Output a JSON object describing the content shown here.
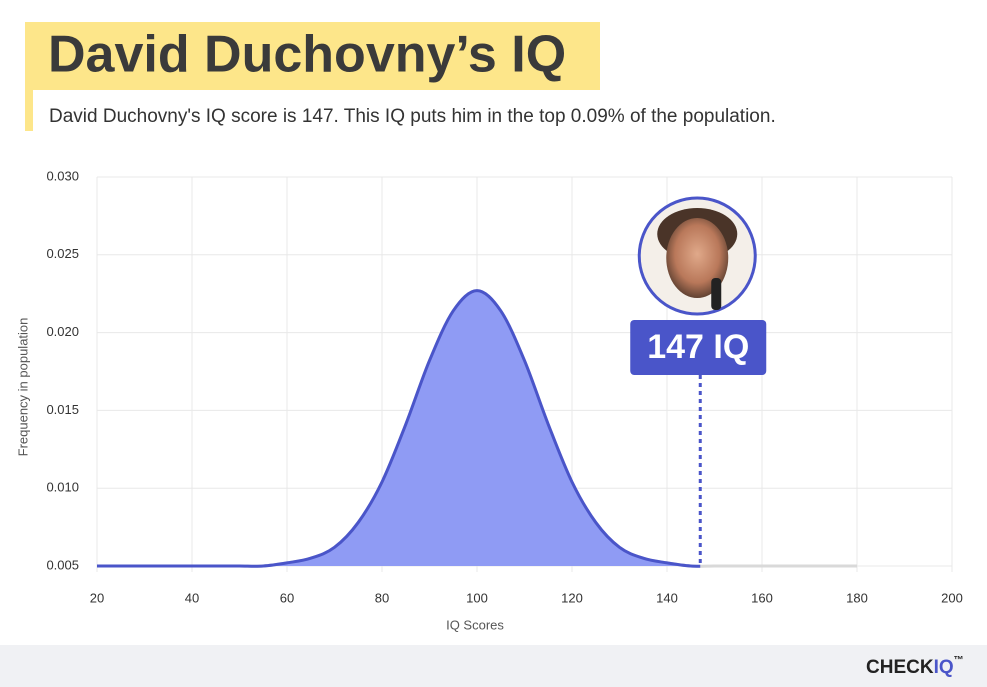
{
  "chart_data": {
    "type": "area",
    "title": "David Duchovny’s IQ",
    "subtitle": "David Duchovny's IQ score is 147. This IQ puts him in the top 0.09% of the population.",
    "x_label": "IQ Scores",
    "y_label": "Frequency in population",
    "x": [
      20,
      25,
      30,
      35,
      40,
      45,
      50,
      55,
      60,
      65,
      70,
      75,
      80,
      85,
      90,
      95,
      100,
      105,
      110,
      115,
      120,
      125,
      130,
      135,
      140,
      145,
      150,
      155,
      160,
      165,
      170,
      175,
      180
    ],
    "values": [
      0.005,
      0.005,
      0.005,
      0.005,
      0.005,
      0.005,
      0.005,
      0.005,
      0.0052,
      0.0055,
      0.0062,
      0.0078,
      0.0104,
      0.0141,
      0.0182,
      0.0214,
      0.0227,
      0.0214,
      0.0182,
      0.0141,
      0.0104,
      0.0078,
      0.0062,
      0.0055,
      0.0052,
      0.005,
      0.005,
      0.005,
      0.005,
      0.005,
      0.005,
      0.005,
      0.005
    ],
    "color": "#4a55c9",
    "fill": "#8f9bf4",
    "xlim": [
      20,
      200
    ],
    "xticks": [
      20,
      40,
      60,
      80,
      100,
      120,
      140,
      160,
      180,
      200
    ],
    "ylim": [
      0.005,
      0.03
    ],
    "yticks": [
      0.005,
      {
        "value": 0.01,
        "label": "0.010"
      },
      0.015,
      {
        "value": 0.02,
        "label": "0.020"
      },
      0.025,
      {
        "value": 0.03,
        "label": "0.030"
      }
    ],
    "grid": true,
    "marker": {
      "value": 147,
      "label": "147 IQ"
    }
  },
  "logo": [
    "CHECK",
    "IQ",
    "™"
  ]
}
